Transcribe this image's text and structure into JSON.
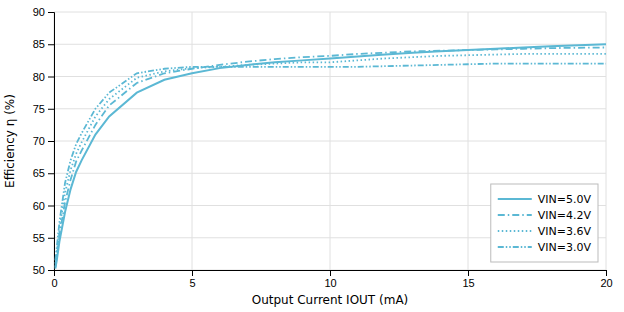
{
  "chart_data": {
    "type": "line",
    "x_label": "Output Current IOUT (mA)",
    "y_label": "Efficiency η (%)",
    "color": "#5BB8D4",
    "grid": true,
    "legend": "lower right",
    "xlim": [
      0,
      20
    ],
    "ylim": [
      50,
      90
    ],
    "xticks": [
      0,
      5,
      10,
      15,
      20
    ],
    "yticks": [
      50,
      55,
      60,
      65,
      70,
      75,
      80,
      85,
      90
    ],
    "x": [
      0.05,
      0.1,
      0.2,
      0.4,
      0.6,
      0.8,
      1.0,
      1.5,
      2.0,
      3.0,
      4.0,
      5.0,
      6.0,
      7.0,
      8.0,
      9.0,
      10.0,
      11.0,
      12.0,
      13.0,
      14.0,
      15.0,
      16.0,
      17.0,
      18.0,
      19.0,
      20.0
    ],
    "series": [
      {
        "name": "VIN=5.0V",
        "line_style": "solid",
        "values": [
          50.2,
          51.5,
          54.5,
          59.0,
          62.5,
          65.2,
          67.0,
          71.0,
          73.8,
          77.5,
          79.5,
          80.5,
          81.3,
          81.8,
          82.2,
          82.5,
          82.8,
          83.1,
          83.4,
          83.7,
          83.9,
          84.1,
          84.3,
          84.5,
          84.7,
          84.85,
          85.0
        ]
      },
      {
        "name": "VIN=4.2V",
        "line_style": "dashdot",
        "values": [
          50.5,
          52.0,
          55.5,
          60.5,
          64.0,
          66.8,
          68.5,
          72.5,
          75.5,
          79.0,
          80.5,
          81.2,
          81.8,
          82.3,
          82.7,
          83.0,
          83.2,
          83.5,
          83.7,
          83.9,
          84.0,
          84.1,
          84.2,
          84.3,
          84.4,
          84.45,
          84.5
        ]
      },
      {
        "name": "VIN=3.6V",
        "line_style": "dotted",
        "values": [
          51.0,
          52.5,
          56.5,
          62.0,
          65.5,
          68.0,
          69.8,
          73.8,
          76.5,
          79.8,
          80.8,
          81.3,
          81.5,
          81.8,
          82.0,
          82.2,
          82.2,
          82.5,
          82.8,
          83.0,
          83.2,
          83.3,
          83.4,
          83.5,
          83.5,
          83.5,
          83.5
        ]
      },
      {
        "name": "VIN=3.0V",
        "line_style": "dashdotdot",
        "values": [
          51.5,
          53.5,
          57.5,
          63.5,
          67.0,
          69.5,
          71.2,
          75.0,
          77.5,
          80.5,
          81.2,
          81.5,
          81.5,
          81.5,
          81.5,
          81.5,
          81.5,
          81.5,
          81.6,
          81.7,
          81.8,
          81.9,
          82.0,
          82.0,
          82.0,
          82.0,
          82.0
        ]
      }
    ]
  }
}
